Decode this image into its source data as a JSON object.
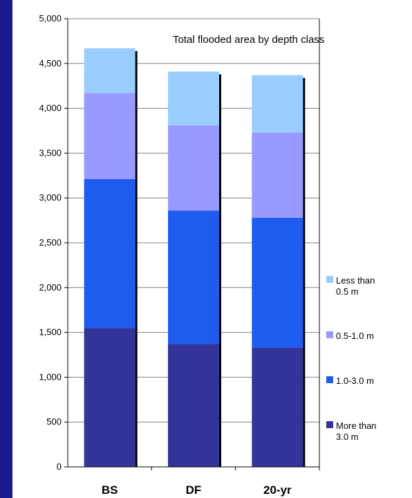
{
  "chart_data": {
    "type": "bar",
    "stacked": true,
    "title": "Total flooded area by depth class",
    "categories": [
      "BS",
      "DF",
      "20-yr"
    ],
    "series": [
      {
        "name": "More than 3.0 m",
        "values": [
          1550,
          1370,
          1330
        ],
        "color": "#333399"
      },
      {
        "name": "1.0-3.0 m",
        "values": [
          1660,
          1490,
          1450
        ],
        "color": "#1e5cf0"
      },
      {
        "name": "0.5-1.0 m",
        "values": [
          960,
          950,
          950
        ],
        "color": "#9999ff"
      },
      {
        "name": "Less than 0.5 m",
        "values": [
          500,
          600,
          640
        ],
        "color": "#99ccff"
      }
    ],
    "ylim": [
      0,
      5000
    ],
    "yticks": [
      "0",
      "500",
      "1,000",
      "1,500",
      "2,000",
      "2,500",
      "3,000",
      "3,500",
      "4,000",
      "4,500",
      "5,000"
    ],
    "grid": true,
    "legend_position": "right"
  },
  "colors": {
    "page_background": "#1a1a8e",
    "plot_background": "#ffffff",
    "gridline": "#808080"
  }
}
